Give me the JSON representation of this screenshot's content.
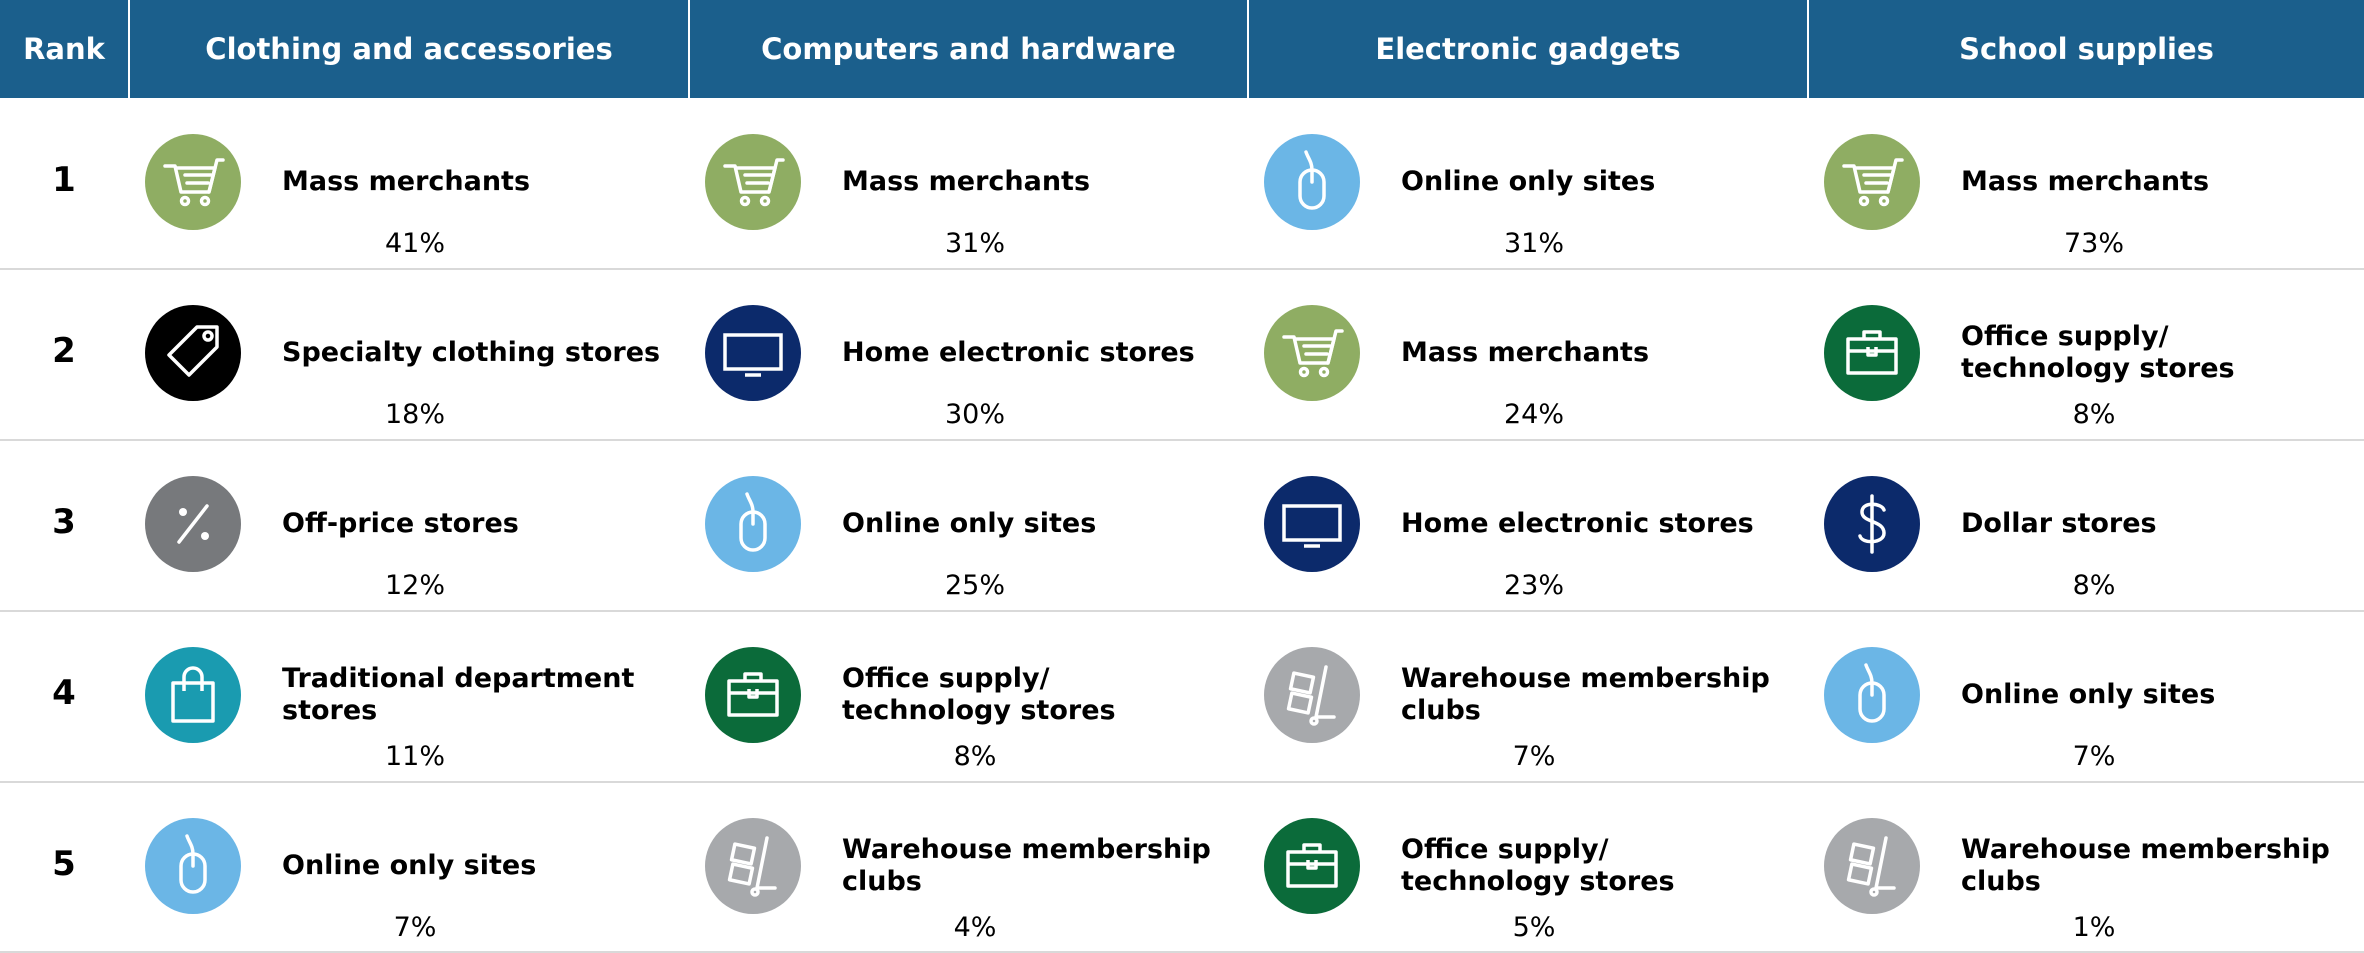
{
  "header": {
    "rank": "Rank",
    "columns": [
      "Clothing and accessories",
      "Computers and hardware",
      "Electronic gadgets",
      "School supplies"
    ]
  },
  "rows": [
    {
      "rank": 1,
      "cells": [
        {
          "label": "Mass merchants",
          "share": "41%"
        },
        {
          "label": "Mass merchants",
          "share": "31%"
        },
        {
          "label": "Online only sites",
          "share": "31%"
        },
        {
          "label": "Mass merchants",
          "share": "73%"
        }
      ]
    },
    {
      "rank": 2,
      "cells": [
        {
          "label": "Specialty clothing stores",
          "share": "18%"
        },
        {
          "label": "Home electronic stores",
          "share": "30%"
        },
        {
          "label": "Mass merchants",
          "share": "24%"
        },
        {
          "label": "Office supply/ technology stores",
          "share": "8%"
        }
      ]
    },
    {
      "rank": 3,
      "cells": [
        {
          "label": "Off-price stores",
          "share": "12%"
        },
        {
          "label": "Online only sites",
          "share": "25%"
        },
        {
          "label": "Home electronic stores",
          "share": "23%"
        },
        {
          "label": "Dollar stores",
          "share": "8%"
        }
      ]
    },
    {
      "rank": 4,
      "cells": [
        {
          "label": "Traditional department stores",
          "share": "11%"
        },
        {
          "label": "Office supply/ technology stores",
          "share": "8%"
        },
        {
          "label": "Warehouse membership clubs",
          "share": "7%"
        },
        {
          "label": "Online only sites",
          "share": "7%"
        }
      ]
    },
    {
      "rank": 5,
      "cells": [
        {
          "label": "Online only sites",
          "share": "7%"
        },
        {
          "label": "Warehouse membership clubs",
          "share": "4%"
        },
        {
          "label": "Office supply/ technology stores",
          "share": "5%"
        },
        {
          "label": "Warehouse membership clubs",
          "share": "1%"
        }
      ]
    }
  ]
}
